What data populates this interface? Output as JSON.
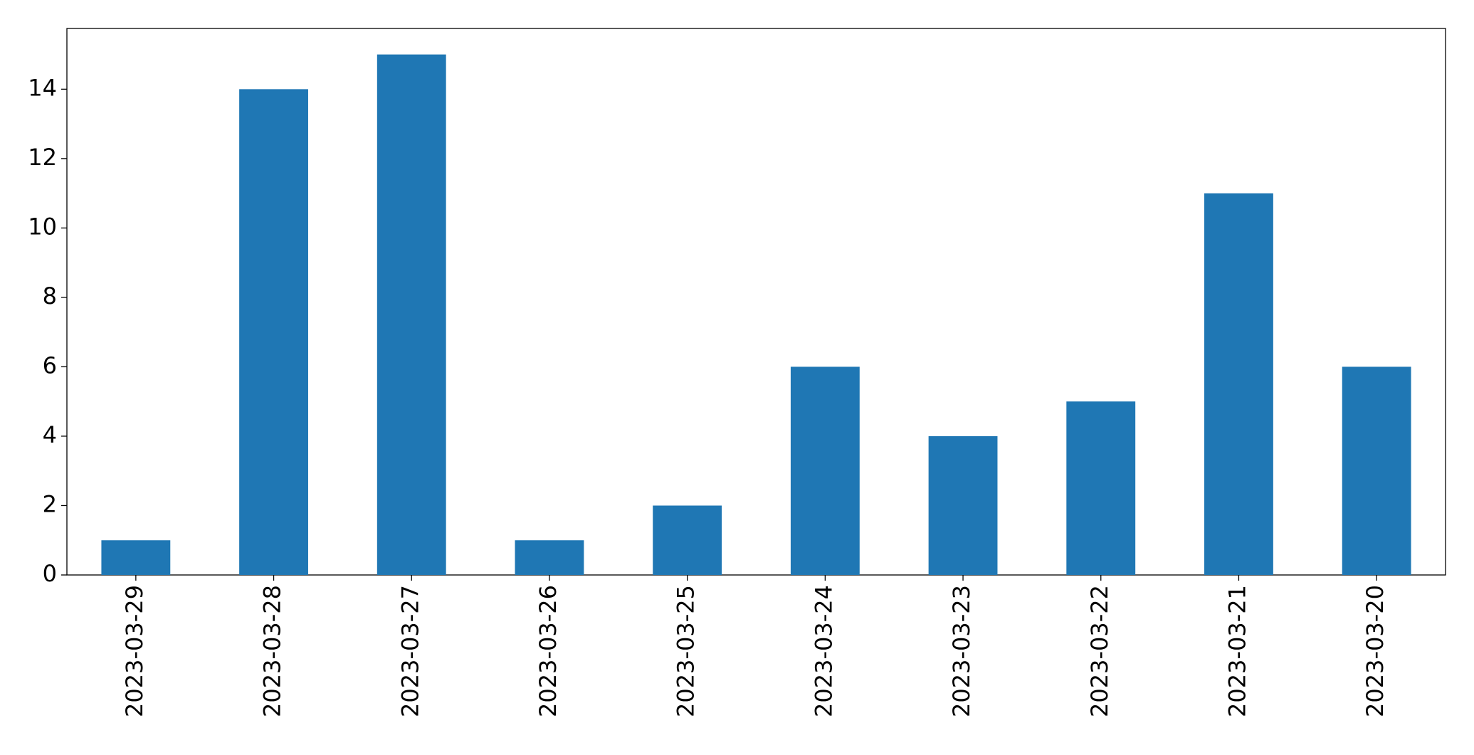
{
  "chart_data": {
    "type": "bar",
    "categories": [
      "2023-03-29",
      "2023-03-28",
      "2023-03-27",
      "2023-03-26",
      "2023-03-25",
      "2023-03-24",
      "2023-03-23",
      "2023-03-22",
      "2023-03-21",
      "2023-03-20"
    ],
    "values": [
      1,
      14,
      15,
      1,
      2,
      6,
      4,
      5,
      11,
      6
    ],
    "color": "#1f77b4",
    "ylim": [
      0,
      15.75
    ],
    "yticks": [
      0,
      2,
      4,
      6,
      8,
      10,
      12,
      14
    ],
    "grid": false
  }
}
